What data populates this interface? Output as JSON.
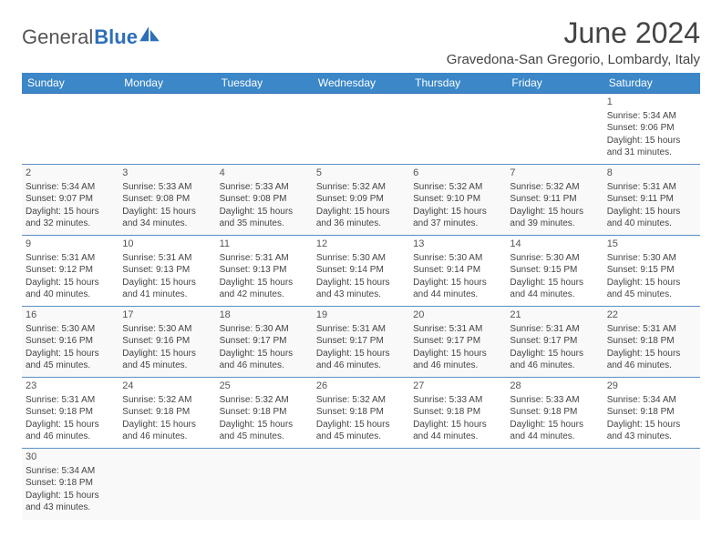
{
  "brand": {
    "part1": "General",
    "part2": "Blue"
  },
  "title": "June 2024",
  "location": "Gravedona-San Gregorio, Lombardy, Italy",
  "colors": {
    "header_bg": "#3b87c8",
    "header_text": "#ffffff",
    "rule": "#5a8fc5",
    "brand_blue": "#2d6fb8",
    "alt_row": "#f9f9f9",
    "first_row": "#f2f2f2"
  },
  "dayHeaders": [
    "Sunday",
    "Monday",
    "Tuesday",
    "Wednesday",
    "Thursday",
    "Friday",
    "Saturday"
  ],
  "weeks": [
    [
      null,
      null,
      null,
      null,
      null,
      null,
      {
        "n": "1",
        "sr": "Sunrise: 5:34 AM",
        "ss": "Sunset: 9:06 PM",
        "d1": "Daylight: 15 hours",
        "d2": "and 31 minutes."
      }
    ],
    [
      {
        "n": "2",
        "sr": "Sunrise: 5:34 AM",
        "ss": "Sunset: 9:07 PM",
        "d1": "Daylight: 15 hours",
        "d2": "and 32 minutes."
      },
      {
        "n": "3",
        "sr": "Sunrise: 5:33 AM",
        "ss": "Sunset: 9:08 PM",
        "d1": "Daylight: 15 hours",
        "d2": "and 34 minutes."
      },
      {
        "n": "4",
        "sr": "Sunrise: 5:33 AM",
        "ss": "Sunset: 9:08 PM",
        "d1": "Daylight: 15 hours",
        "d2": "and 35 minutes."
      },
      {
        "n": "5",
        "sr": "Sunrise: 5:32 AM",
        "ss": "Sunset: 9:09 PM",
        "d1": "Daylight: 15 hours",
        "d2": "and 36 minutes."
      },
      {
        "n": "6",
        "sr": "Sunrise: 5:32 AM",
        "ss": "Sunset: 9:10 PM",
        "d1": "Daylight: 15 hours",
        "d2": "and 37 minutes."
      },
      {
        "n": "7",
        "sr": "Sunrise: 5:32 AM",
        "ss": "Sunset: 9:11 PM",
        "d1": "Daylight: 15 hours",
        "d2": "and 39 minutes."
      },
      {
        "n": "8",
        "sr": "Sunrise: 5:31 AM",
        "ss": "Sunset: 9:11 PM",
        "d1": "Daylight: 15 hours",
        "d2": "and 40 minutes."
      }
    ],
    [
      {
        "n": "9",
        "sr": "Sunrise: 5:31 AM",
        "ss": "Sunset: 9:12 PM",
        "d1": "Daylight: 15 hours",
        "d2": "and 40 minutes."
      },
      {
        "n": "10",
        "sr": "Sunrise: 5:31 AM",
        "ss": "Sunset: 9:13 PM",
        "d1": "Daylight: 15 hours",
        "d2": "and 41 minutes."
      },
      {
        "n": "11",
        "sr": "Sunrise: 5:31 AM",
        "ss": "Sunset: 9:13 PM",
        "d1": "Daylight: 15 hours",
        "d2": "and 42 minutes."
      },
      {
        "n": "12",
        "sr": "Sunrise: 5:30 AM",
        "ss": "Sunset: 9:14 PM",
        "d1": "Daylight: 15 hours",
        "d2": "and 43 minutes."
      },
      {
        "n": "13",
        "sr": "Sunrise: 5:30 AM",
        "ss": "Sunset: 9:14 PM",
        "d1": "Daylight: 15 hours",
        "d2": "and 44 minutes."
      },
      {
        "n": "14",
        "sr": "Sunrise: 5:30 AM",
        "ss": "Sunset: 9:15 PM",
        "d1": "Daylight: 15 hours",
        "d2": "and 44 minutes."
      },
      {
        "n": "15",
        "sr": "Sunrise: 5:30 AM",
        "ss": "Sunset: 9:15 PM",
        "d1": "Daylight: 15 hours",
        "d2": "and 45 minutes."
      }
    ],
    [
      {
        "n": "16",
        "sr": "Sunrise: 5:30 AM",
        "ss": "Sunset: 9:16 PM",
        "d1": "Daylight: 15 hours",
        "d2": "and 45 minutes."
      },
      {
        "n": "17",
        "sr": "Sunrise: 5:30 AM",
        "ss": "Sunset: 9:16 PM",
        "d1": "Daylight: 15 hours",
        "d2": "and 45 minutes."
      },
      {
        "n": "18",
        "sr": "Sunrise: 5:30 AM",
        "ss": "Sunset: 9:17 PM",
        "d1": "Daylight: 15 hours",
        "d2": "and 46 minutes."
      },
      {
        "n": "19",
        "sr": "Sunrise: 5:31 AM",
        "ss": "Sunset: 9:17 PM",
        "d1": "Daylight: 15 hours",
        "d2": "and 46 minutes."
      },
      {
        "n": "20",
        "sr": "Sunrise: 5:31 AM",
        "ss": "Sunset: 9:17 PM",
        "d1": "Daylight: 15 hours",
        "d2": "and 46 minutes."
      },
      {
        "n": "21",
        "sr": "Sunrise: 5:31 AM",
        "ss": "Sunset: 9:17 PM",
        "d1": "Daylight: 15 hours",
        "d2": "and 46 minutes."
      },
      {
        "n": "22",
        "sr": "Sunrise: 5:31 AM",
        "ss": "Sunset: 9:18 PM",
        "d1": "Daylight: 15 hours",
        "d2": "and 46 minutes."
      }
    ],
    [
      {
        "n": "23",
        "sr": "Sunrise: 5:31 AM",
        "ss": "Sunset: 9:18 PM",
        "d1": "Daylight: 15 hours",
        "d2": "and 46 minutes."
      },
      {
        "n": "24",
        "sr": "Sunrise: 5:32 AM",
        "ss": "Sunset: 9:18 PM",
        "d1": "Daylight: 15 hours",
        "d2": "and 46 minutes."
      },
      {
        "n": "25",
        "sr": "Sunrise: 5:32 AM",
        "ss": "Sunset: 9:18 PM",
        "d1": "Daylight: 15 hours",
        "d2": "and 45 minutes."
      },
      {
        "n": "26",
        "sr": "Sunrise: 5:32 AM",
        "ss": "Sunset: 9:18 PM",
        "d1": "Daylight: 15 hours",
        "d2": "and 45 minutes."
      },
      {
        "n": "27",
        "sr": "Sunrise: 5:33 AM",
        "ss": "Sunset: 9:18 PM",
        "d1": "Daylight: 15 hours",
        "d2": "and 44 minutes."
      },
      {
        "n": "28",
        "sr": "Sunrise: 5:33 AM",
        "ss": "Sunset: 9:18 PM",
        "d1": "Daylight: 15 hours",
        "d2": "and 44 minutes."
      },
      {
        "n": "29",
        "sr": "Sunrise: 5:34 AM",
        "ss": "Sunset: 9:18 PM",
        "d1": "Daylight: 15 hours",
        "d2": "and 43 minutes."
      }
    ],
    [
      {
        "n": "30",
        "sr": "Sunrise: 5:34 AM",
        "ss": "Sunset: 9:18 PM",
        "d1": "Daylight: 15 hours",
        "d2": "and 43 minutes."
      },
      null,
      null,
      null,
      null,
      null,
      null
    ]
  ]
}
